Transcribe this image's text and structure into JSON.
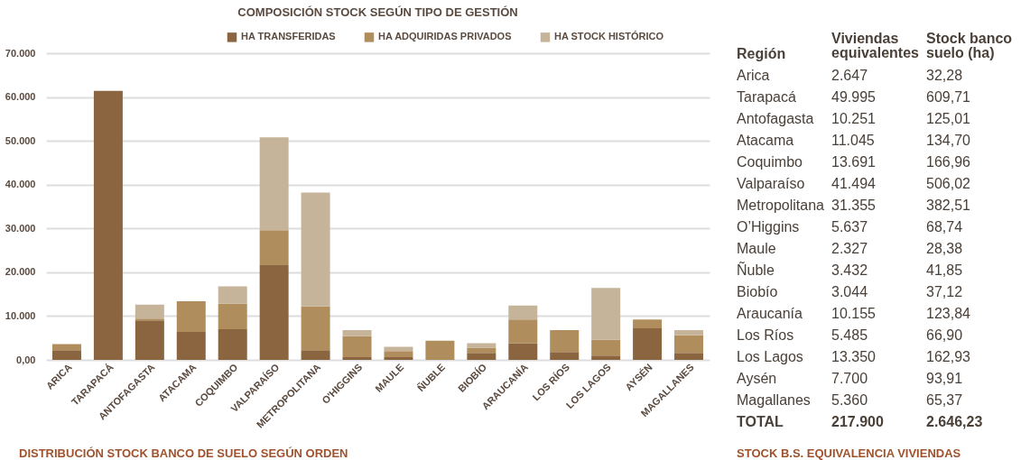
{
  "chart_data": [
    {
      "type": "bar",
      "title": "COMPOSICIÓN STOCK SEGÚN TIPO DE GESTIÓN",
      "stacked": true,
      "legend": "top",
      "grid": "y",
      "categories": [
        "ARICA",
        "TARAPACÁ",
        "ANTOFAGASTA",
        "ATACAMA",
        "COQUIMBO",
        "VALPARAÍSO",
        "METROPOLITANA",
        "O'HIGGINS",
        "MAULE",
        "ÑUBLE",
        "BIOBÍO",
        "ARAUCANÍA",
        "LOS RÍOS",
        "LOS LAGOS",
        "AYSÉN",
        "MAGALLANES"
      ],
      "series": [
        {
          "name": "HA TRANSFERIDAS",
          "color": "#8b6540",
          "values": [
            2200,
            61400,
            9000,
            6400,
            7000,
            21600,
            2200,
            600,
            600,
            0,
            1600,
            3800,
            1800,
            1000,
            7200,
            1600
          ]
        },
        {
          "name": "HA ADQUIRIDAS PRIVADOS",
          "color": "#b08d5c",
          "values": [
            1400,
            0,
            400,
            7000,
            5800,
            8000,
            10000,
            4800,
            1400,
            4400,
            1200,
            5400,
            5000,
            3600,
            2000,
            4000
          ]
        },
        {
          "name": "HA STOCK HISTÓRICO",
          "color": "#c5b49a",
          "values": [
            0,
            0,
            3200,
            0,
            4000,
            21200,
            26000,
            1400,
            1000,
            0,
            1000,
            3200,
            0,
            11800,
            0,
            1200
          ]
        }
      ],
      "ylim": [
        0,
        70000
      ],
      "yticks": [
        {
          "value": 0,
          "label": "0,00"
        },
        {
          "value": 10000,
          "label": "10.000"
        },
        {
          "value": 20000,
          "label": "20.000"
        },
        {
          "value": 30000,
          "label": "30.000"
        },
        {
          "value": 40000,
          "label": "40.000"
        },
        {
          "value": 50000,
          "label": "50.000"
        },
        {
          "value": 60000,
          "label": "60.000"
        },
        {
          "value": 70000,
          "label": "70.000"
        }
      ],
      "annotations": [
        "DISTRIBUCIÓN STOCK BANCO DE SUELO SEGÚN ORDEN"
      ]
    },
    {
      "type": "other",
      "annotations": [
        "Región",
        "Viviendas\nequivalentes",
        "Stock banco\nsuelo (ha)",
        "Arica",
        "2.647",
        "32,28",
        "Tarapacá",
        "49.995",
        "609,71",
        "Antofagasta",
        "10.251",
        "125,01",
        "Atacama",
        "11.045",
        "134,70",
        "Coquimbo",
        "13.691",
        "166,96",
        "Valparaíso",
        "41.494",
        "506,02",
        "Metropolitana",
        "31.355",
        "382,51",
        "O’Higgins",
        "5.637",
        "68,74",
        "Maule",
        "2.327",
        "28,38",
        "Ñuble",
        "3.432",
        "41,85",
        "Biobío",
        "3.044",
        "37,12",
        "Araucanía",
        "10.155",
        "123,84",
        "Los Ríos",
        "5.485",
        "66,90",
        "Los Lagos",
        "13.350",
        "162,93",
        "Aysén",
        "7.700",
        "93,91",
        "Magallanes",
        "5.360",
        "65,37",
        "TOTAL",
        "217.900",
        "2.646,23",
        "STOCK B.S. EQUIVALENCIA VIVIENDAS"
      ]
    }
  ]
}
